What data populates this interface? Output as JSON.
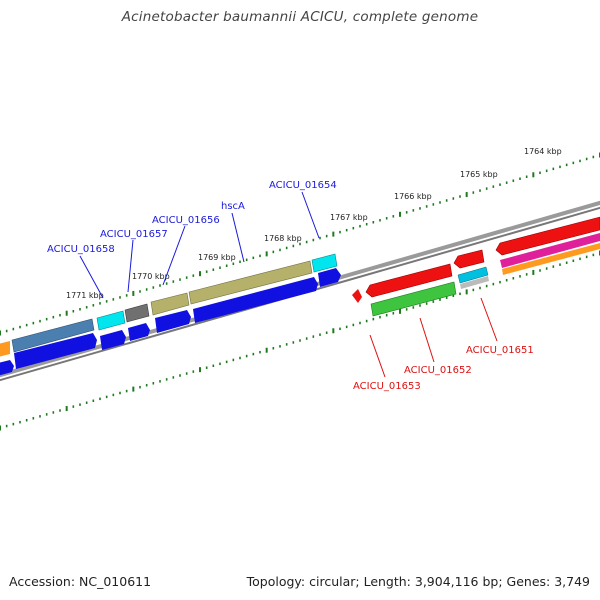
{
  "title": "Acinetobacter baumannii ACICU, complete genome",
  "footer": {
    "accession": "Accession: NC_010611",
    "summary": "Topology: circular; Length: 3,904,116 bp; Genes: 3,749"
  },
  "ticks": [
    {
      "label": "1764 kbp"
    },
    {
      "label": "1765 kbp"
    },
    {
      "label": "1766 kbp"
    },
    {
      "label": "1767 kbp"
    },
    {
      "label": "1768 kbp"
    },
    {
      "label": "1769 kbp"
    },
    {
      "label": "1770 kbp"
    },
    {
      "label": "1771 kbp"
    }
  ],
  "genes_forward": [
    {
      "label": "ACICU_01658",
      "color": "#4a7fb0"
    },
    {
      "label": "ACICU_01657",
      "color": "#00e5ee"
    },
    {
      "label": "ACICU_01656",
      "color": "#707070"
    },
    {
      "label": "hscA",
      "color": "#b5b06a"
    },
    {
      "label": "ACICU_01654",
      "color": "#00e5ee"
    }
  ],
  "genes_reverse": [
    {
      "label": "ACICU_01653",
      "color": "#3ec43e"
    },
    {
      "label": "ACICU_01652",
      "color": "#ee1111"
    },
    {
      "label": "ACICU_01651",
      "color": "#ee1111"
    }
  ],
  "colors": {
    "forward_label": "#1a1adc",
    "reverse_label": "#dd1111",
    "cds": "#1010e0",
    "backbone": "#888888",
    "tick": "#1f7a1f",
    "orange": "#ff9a20",
    "magenta": "#e0209a"
  }
}
